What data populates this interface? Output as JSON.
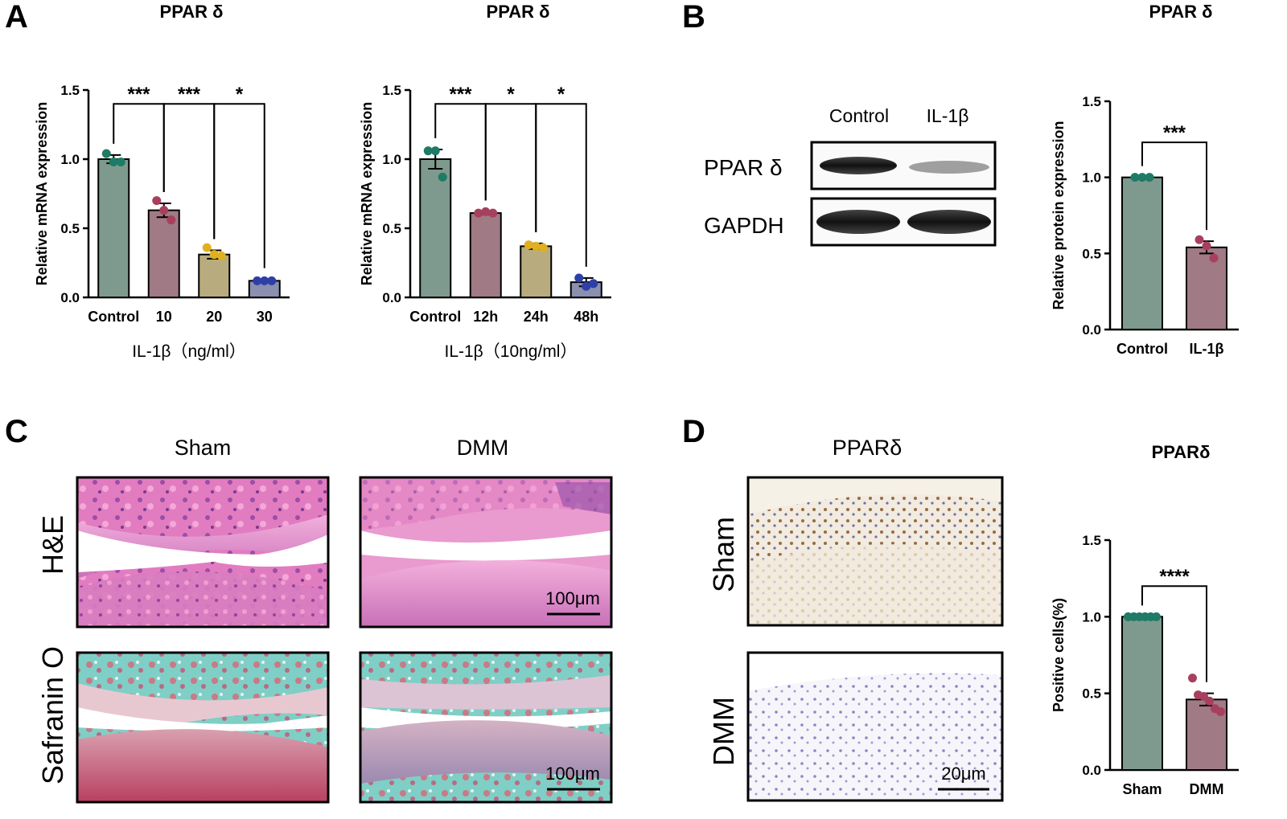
{
  "panels": {
    "A": {
      "letter": "A"
    },
    "B": {
      "letter": "B",
      "blot": {
        "lanes": [
          "Control",
          "IL-1β"
        ],
        "rows": [
          "PPAR δ",
          "GAPDH"
        ],
        "intensity": {
          "PPAR δ": [
            1.0,
            0.45
          ],
          "GAPDH": [
            1.0,
            1.0
          ]
        }
      }
    },
    "C": {
      "letter": "C",
      "columns": [
        "Sham",
        "DMM"
      ],
      "rows": [
        "H&E",
        "Safranin O"
      ],
      "scale_bar": "100μm"
    },
    "D": {
      "letter": "D",
      "column": "PPARδ",
      "rows": [
        "Sham",
        "DMM"
      ],
      "scale_bar": "20μm"
    }
  },
  "colors": {
    "control": "#7e9a8e",
    "il1b": "#a07a84",
    "mid": "#b8ac7e",
    "late": "#8a90ae",
    "dot_control": "#1f7a66",
    "dot_il1b": "#a7405e",
    "dot_mid": "#e0b020",
    "dot_late": "#2f3fa8"
  },
  "chart_data": [
    {
      "id": "A1",
      "type": "bar",
      "title": "PPAR δ",
      "categories": [
        "Control",
        "10",
        "20",
        "30"
      ],
      "values": [
        1.0,
        0.63,
        0.31,
        0.12
      ],
      "errors": [
        0.03,
        0.05,
        0.03,
        0.01
      ],
      "points": [
        [
          1.04,
          0.98,
          0.98
        ],
        [
          0.7,
          0.63,
          0.56
        ],
        [
          0.36,
          0.31,
          0.3
        ],
        [
          0.12,
          0.12,
          0.12
        ]
      ],
      "ylabel": "Relative mRNA expression",
      "xlabel": "IL-1β（ng/ml）",
      "ylim": [
        0,
        1.5
      ],
      "yticks": [
        "0.0",
        "0.5",
        "1.0",
        "1.5"
      ],
      "bar_colors": [
        "control",
        "il1b",
        "mid",
        "late"
      ],
      "dot_colors": [
        "dot_control",
        "dot_il1b",
        "dot_mid",
        "dot_late"
      ],
      "significance": [
        {
          "from": 0,
          "to": 1,
          "label": "***",
          "level": 1.4
        },
        {
          "from": 1,
          "to": 2,
          "label": "***",
          "level": 1.4
        },
        {
          "from": 2,
          "to": 3,
          "label": "*",
          "level": 1.4
        }
      ]
    },
    {
      "id": "A2",
      "type": "bar",
      "title": "PPAR δ",
      "categories": [
        "Control",
        "12h",
        "24h",
        "48h"
      ],
      "values": [
        1.0,
        0.61,
        0.37,
        0.11
      ],
      "errors": [
        0.07,
        0.01,
        0.02,
        0.03
      ],
      "points": [
        [
          1.06,
          1.06,
          0.87
        ],
        [
          0.61,
          0.62,
          0.61
        ],
        [
          0.38,
          0.37,
          0.36
        ],
        [
          0.14,
          0.08,
          0.1
        ]
      ],
      "ylabel": "Relative mRNA expression",
      "xlabel": "IL-1β（10ng/ml）",
      "ylim": [
        0,
        1.5
      ],
      "yticks": [
        "0.0",
        "0.5",
        "1.0",
        "1.5"
      ],
      "bar_colors": [
        "control",
        "il1b",
        "mid",
        "late"
      ],
      "dot_colors": [
        "dot_control",
        "dot_il1b",
        "dot_mid",
        "dot_late"
      ],
      "significance": [
        {
          "from": 0,
          "to": 1,
          "label": "***",
          "level": 1.4
        },
        {
          "from": 1,
          "to": 2,
          "label": "*",
          "level": 1.4
        },
        {
          "from": 2,
          "to": 3,
          "label": "*",
          "level": 1.4
        }
      ]
    },
    {
      "id": "B",
      "type": "bar",
      "title": "PPAR δ",
      "categories": [
        "Control",
        "IL-1β"
      ],
      "values": [
        1.0,
        0.54
      ],
      "errors": [
        0.0,
        0.04
      ],
      "points": [
        [
          1.0,
          1.0,
          1.0
        ],
        [
          0.59,
          0.55,
          0.47
        ]
      ],
      "ylabel": "Relative protein expression",
      "xlabel": "",
      "ylim": [
        0,
        1.5
      ],
      "yticks": [
        "0.0",
        "0.5",
        "1.0",
        "1.5"
      ],
      "bar_colors": [
        "control",
        "il1b"
      ],
      "dot_colors": [
        "dot_control",
        "dot_il1b"
      ],
      "significance": [
        {
          "from": 0,
          "to": 1,
          "label": "***",
          "level": 1.23
        }
      ]
    },
    {
      "id": "D",
      "type": "bar",
      "title": "PPARδ",
      "categories": [
        "Sham",
        "DMM"
      ],
      "values": [
        1.0,
        0.46
      ],
      "errors": [
        0.0,
        0.04
      ],
      "points": [
        [
          1.0,
          1.0,
          1.0,
          1.0,
          1.0,
          1.0
        ],
        [
          0.6,
          0.49,
          0.48,
          0.45,
          0.4,
          0.38
        ]
      ],
      "ylabel": "Positive cells(%)",
      "xlabel": "",
      "ylim": [
        0,
        1.5
      ],
      "yticks": [
        "0.0",
        "0.5",
        "1.0",
        "1.5"
      ],
      "bar_colors": [
        "control",
        "il1b"
      ],
      "dot_colors": [
        "dot_control",
        "dot_il1b"
      ],
      "significance": [
        {
          "from": 0,
          "to": 1,
          "label": "****",
          "level": 1.2
        }
      ]
    }
  ]
}
